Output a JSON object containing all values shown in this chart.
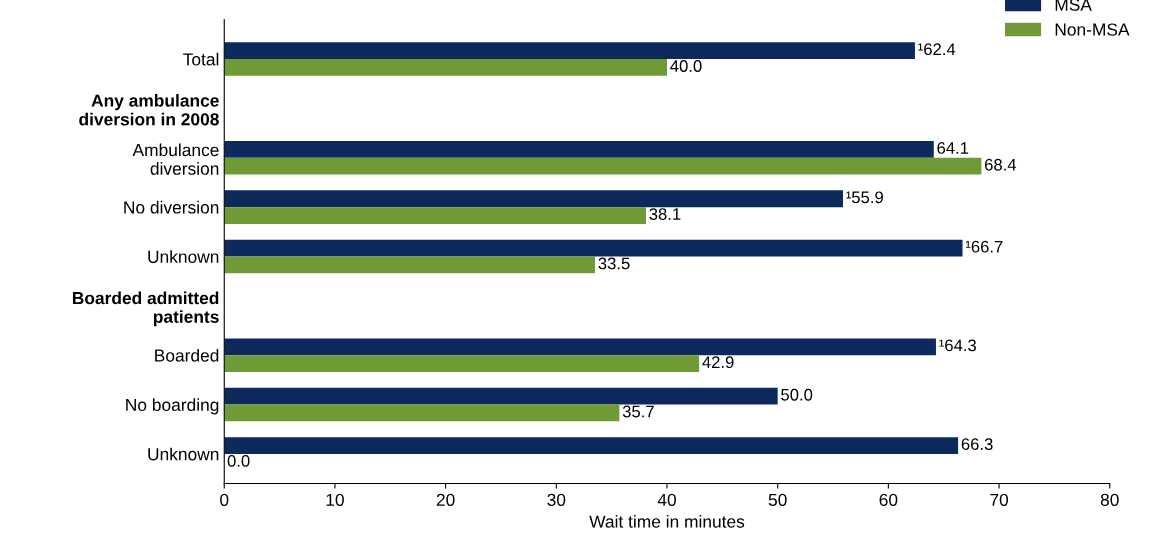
{
  "chart_data": {
    "type": "bar",
    "orientation": "horizontal",
    "xlabel": "Wait time in minutes",
    "categories": [
      "Total",
      "Any ambulance\ndiversion in 2008",
      "Ambulance\ndiversion",
      "No diversion",
      "Unknown",
      "Boarded admitted\npatients",
      "Boarded",
      "No boarding",
      "Unknown"
    ],
    "series": [
      {
        "name": "MSA",
        "color": "#0e2a5c",
        "values": [
          62.4,
          null,
          64.1,
          55.9,
          66.7,
          null,
          64.3,
          50.0,
          66.3
        ],
        "value_labels": [
          "¹62.4",
          null,
          "64.1",
          "¹55.9",
          "¹66.7",
          null,
          "¹64.3",
          "50.0",
          "66.3"
        ]
      },
      {
        "name": "Non-MSA",
        "color": "#6f9a35",
        "values": [
          40.0,
          null,
          68.4,
          38.1,
          33.5,
          null,
          42.9,
          35.7,
          0.0
        ],
        "value_labels": [
          "40.0",
          null,
          "68.4",
          "38.1",
          "33.5",
          null,
          "42.9",
          "35.7",
          "0.0"
        ]
      }
    ],
    "xlim": [
      0,
      80
    ],
    "xticks": [
      0,
      10,
      20,
      30,
      40,
      50,
      60,
      70,
      80
    ],
    "legend": "top right"
  }
}
